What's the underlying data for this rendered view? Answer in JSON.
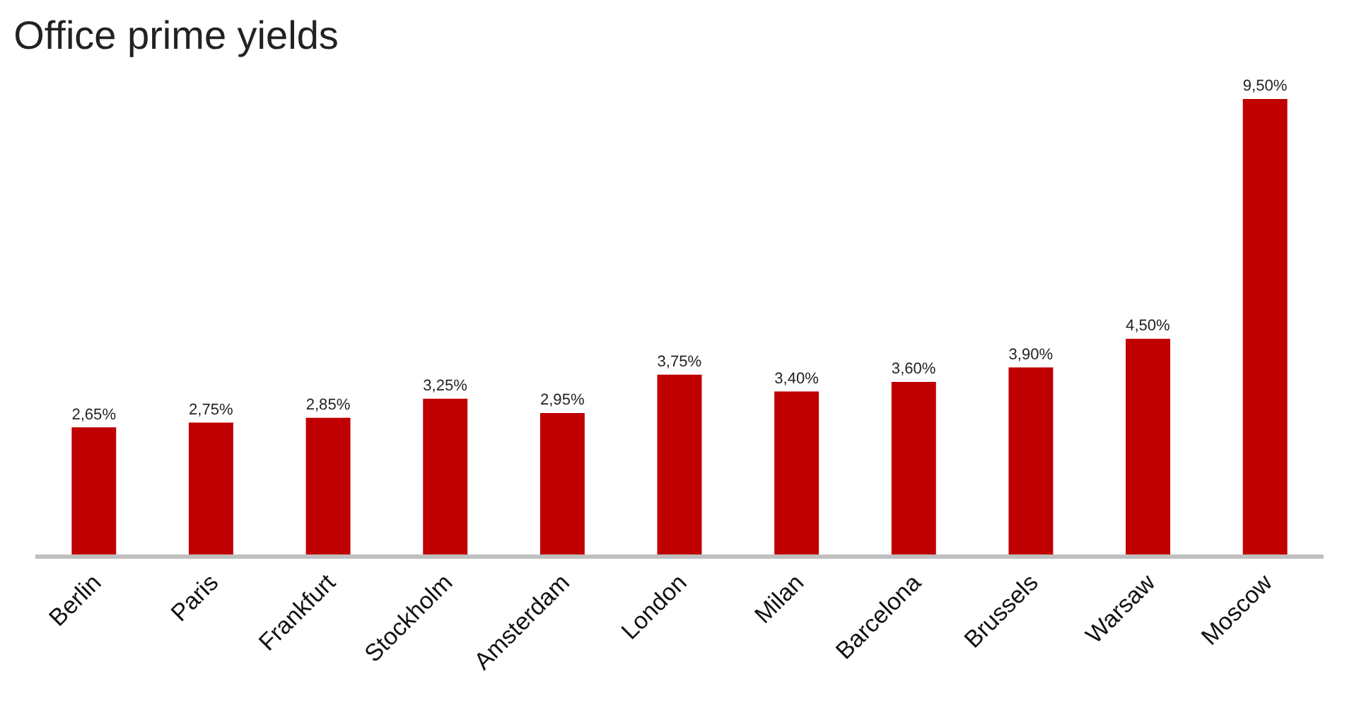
{
  "chart_data": {
    "type": "bar",
    "title": "Office prime yields",
    "categories": [
      "Berlin",
      "Paris",
      "Frankfurt",
      "Stockholm",
      "Amsterdam",
      "London",
      "Milan",
      "Barcelona",
      "Brussels",
      "Warsaw",
      "Moscow"
    ],
    "values": [
      2.65,
      2.75,
      2.85,
      3.25,
      2.95,
      3.75,
      3.4,
      3.6,
      3.9,
      4.5,
      9.5
    ],
    "value_labels": [
      "2,65%",
      "2,75%",
      "2,85%",
      "3,25%",
      "2,95%",
      "3,75%",
      "3,40%",
      "3,60%",
      "3,90%",
      "4,50%",
      "9,50%"
    ],
    "color": "#c00000",
    "grid": false,
    "legend": false
  }
}
